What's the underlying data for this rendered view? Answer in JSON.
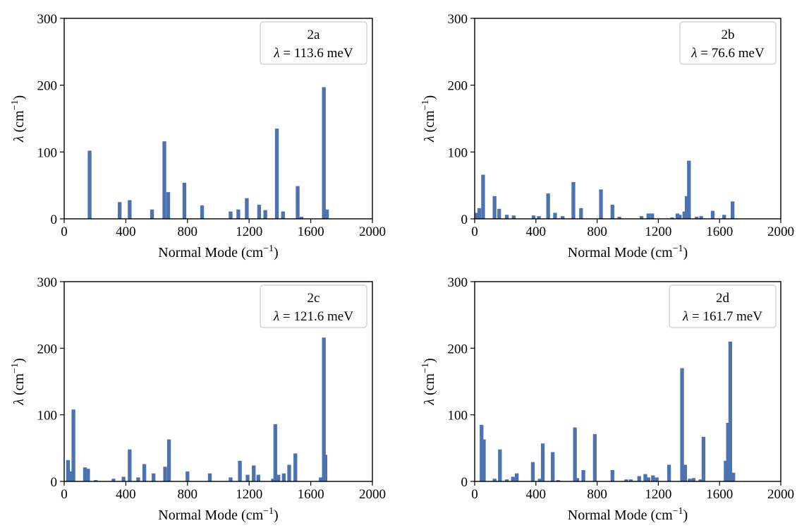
{
  "colors": {
    "bar": "#4c72b0",
    "axis": "#000000",
    "legend_border": "#cccccc",
    "background": "#ffffff"
  },
  "chart_data": [
    {
      "type": "bar",
      "label": "2a",
      "legend_lambda": "113.6 meV",
      "xlabel": "Normal Mode",
      "ylabel": "λ",
      "unit": "(cm−1)",
      "xlim": [
        0,
        2000
      ],
      "ylim": [
        0,
        300
      ],
      "xticks": [
        0,
        400,
        800,
        1200,
        1600,
        2000
      ],
      "yticks": [
        0,
        100,
        200,
        300
      ],
      "grid": false,
      "legend_position": "top-right",
      "x": [
        165,
        360,
        425,
        570,
        650,
        675,
        780,
        895,
        1080,
        1130,
        1185,
        1265,
        1305,
        1380,
        1420,
        1515,
        1540,
        1685,
        1705
      ],
      "values": [
        102,
        25,
        28,
        14,
        116,
        40,
        54,
        20,
        11,
        14,
        31,
        21,
        13,
        135,
        11,
        49,
        3,
        197,
        14
      ]
    },
    {
      "type": "bar",
      "label": "2b",
      "legend_lambda": "76.6 meV",
      "xlabel": "Normal Mode",
      "ylabel": "λ",
      "unit": "(cm−1)",
      "xlim": [
        0,
        2000
      ],
      "ylim": [
        0,
        300
      ],
      "xticks": [
        0,
        400,
        800,
        1200,
        1600,
        2000
      ],
      "yticks": [
        0,
        100,
        200,
        300
      ],
      "grid": false,
      "legend_position": "top-right",
      "x": [
        15,
        30,
        55,
        130,
        160,
        210,
        255,
        385,
        420,
        480,
        525,
        575,
        645,
        695,
        825,
        900,
        945,
        1090,
        1135,
        1160,
        1290,
        1325,
        1340,
        1370,
        1385,
        1400,
        1450,
        1480,
        1555,
        1630,
        1685
      ],
      "values": [
        9,
        16,
        66,
        34,
        15,
        6,
        5,
        5,
        4,
        38,
        9,
        4,
        55,
        16,
        44,
        21,
        3,
        4,
        8,
        8,
        2,
        8,
        6,
        11,
        34,
        87,
        3,
        4,
        12,
        6,
        26
      ]
    },
    {
      "type": "bar",
      "label": "2c",
      "legend_lambda": "121.6 meV",
      "xlabel": "Normal Mode",
      "ylabel": "λ",
      "unit": "(cm−1)",
      "xlim": [
        0,
        2000
      ],
      "ylim": [
        0,
        300
      ],
      "xticks": [
        0,
        400,
        800,
        1200,
        1600,
        2000
      ],
      "yticks": [
        0,
        100,
        200,
        300
      ],
      "grid": false,
      "legend_position": "top-right",
      "x": [
        25,
        45,
        60,
        135,
        155,
        205,
        320,
        385,
        425,
        480,
        520,
        580,
        655,
        680,
        800,
        945,
        1080,
        1140,
        1190,
        1230,
        1260,
        1355,
        1370,
        1390,
        1425,
        1460,
        1500,
        1665,
        1685,
        1695
      ],
      "values": [
        32,
        15,
        108,
        21,
        19,
        2,
        4,
        7,
        48,
        6,
        26,
        12,
        22,
        63,
        15,
        12,
        6,
        31,
        10,
        24,
        10,
        4,
        86,
        10,
        12,
        25,
        42,
        6,
        216,
        40
      ]
    },
    {
      "type": "bar",
      "label": "2d",
      "legend_lambda": "161.7 meV",
      "xlabel": "Normal Mode",
      "ylabel": "λ",
      "unit": "(cm−1)",
      "xlim": [
        0,
        2000
      ],
      "ylim": [
        0,
        300
      ],
      "xticks": [
        0,
        400,
        800,
        1200,
        1600,
        2000
      ],
      "yticks": [
        0,
        100,
        200,
        300
      ],
      "grid": false,
      "legend_position": "top-right",
      "x": [
        45,
        60,
        130,
        165,
        210,
        250,
        275,
        380,
        425,
        445,
        510,
        545,
        655,
        670,
        710,
        785,
        900,
        990,
        1020,
        1075,
        1115,
        1135,
        1165,
        1190,
        1270,
        1355,
        1375,
        1405,
        1430,
        1475,
        1495,
        1640,
        1655,
        1670,
        1690
      ],
      "values": [
        85,
        63,
        4,
        48,
        3,
        7,
        12,
        29,
        4,
        57,
        44,
        2,
        81,
        5,
        17,
        71,
        17,
        3,
        3,
        8,
        11,
        6,
        9,
        6,
        25,
        170,
        25,
        4,
        5,
        3,
        67,
        31,
        88,
        210,
        13
      ]
    }
  ]
}
